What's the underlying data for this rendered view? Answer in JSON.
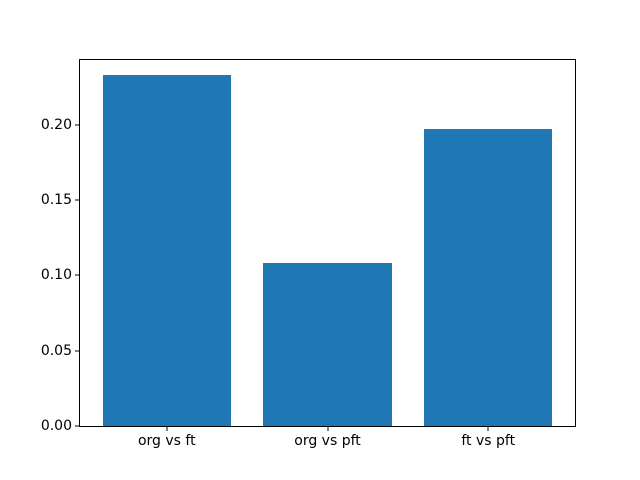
{
  "chart_data": {
    "type": "bar",
    "categories": [
      "org vs ft",
      "org vs pft",
      "ft vs pft"
    ],
    "x": [
      0,
      1,
      2
    ],
    "values": [
      0.233,
      0.108,
      0.197
    ],
    "bar_width": 0.8,
    "bar_color": "#1f77b4",
    "title": "",
    "xlabel": "",
    "ylabel": "",
    "xlim": [
      -0.54,
      2.54
    ],
    "ylim": [
      0,
      0.243
    ],
    "yticks": [
      0.0,
      0.05,
      0.1,
      0.15,
      0.2
    ],
    "ytick_labels": [
      "0.00",
      "0.05",
      "0.10",
      "0.15",
      "0.20"
    ],
    "grid": false,
    "legend": null,
    "spine_color": "#000000",
    "background_color": "#ffffff"
  }
}
